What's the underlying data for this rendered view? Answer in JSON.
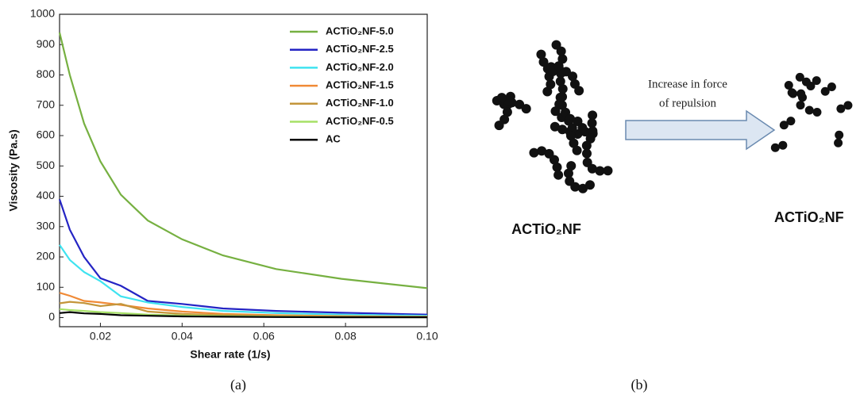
{
  "chart_data": {
    "type": "line",
    "x_label": "Shear rate (1/s)",
    "y_label": "Viscosity (Pa.s)",
    "x": [
      0.01,
      0.0125,
      0.016,
      0.02,
      0.025,
      0.0316,
      0.04,
      0.05,
      0.063,
      0.079,
      0.1
    ],
    "series": [
      {
        "name": "ACTiO₂NF-5.0",
        "color": "#76b041",
        "values": [
          940,
          800,
          640,
          515,
          405,
          320,
          258,
          205,
          160,
          128,
          97
        ]
      },
      {
        "name": "ACTiO₂NF-2.5",
        "color": "#2424c4",
        "values": [
          390,
          290,
          200,
          130,
          105,
          55,
          45,
          30,
          22,
          16,
          10
        ]
      },
      {
        "name": "ACTiO₂NF-2.0",
        "color": "#3fe3f0",
        "values": [
          240,
          190,
          150,
          120,
          70,
          50,
          35,
          22,
          15,
          10,
          6
        ]
      },
      {
        "name": "ACTiO₂NF-1.5",
        "color": "#f08a36",
        "values": [
          82,
          72,
          55,
          50,
          42,
          30,
          20,
          12,
          8,
          5,
          3
        ]
      },
      {
        "name": "ACTiO₂NF-1.0",
        "color": "#c3953a",
        "values": [
          47,
          52,
          48,
          38,
          45,
          20,
          12,
          8,
          5,
          3,
          2
        ]
      },
      {
        "name": "ACTiO₂NF-0.5",
        "color": "#a6e066",
        "values": [
          28,
          25,
          22,
          18,
          15,
          10,
          7,
          5,
          3,
          2,
          1
        ]
      },
      {
        "name": "AC",
        "color": "#000000",
        "values": [
          15,
          18,
          14,
          12,
          8,
          6,
          4,
          3,
          2,
          1,
          1
        ]
      }
    ],
    "xlim": [
      0.01,
      0.1
    ],
    "xticks": [
      0.02,
      0.04,
      0.06,
      0.08,
      {
        "value": 0.1,
        "label": "0.10"
      }
    ],
    "ylim": [
      -30,
      1000
    ],
    "yticks": [
      0,
      100,
      200,
      300,
      400,
      500,
      600,
      700,
      800,
      900,
      1000
    ],
    "legend": "top-right"
  },
  "panel_b": {
    "arrow_text": [
      "Increase in force",
      "of repulsion"
    ],
    "left_label": "ACTiO₂NF",
    "right_label": "ACTiO₂NF"
  },
  "captions": [
    "(a)",
    "(b)"
  ]
}
